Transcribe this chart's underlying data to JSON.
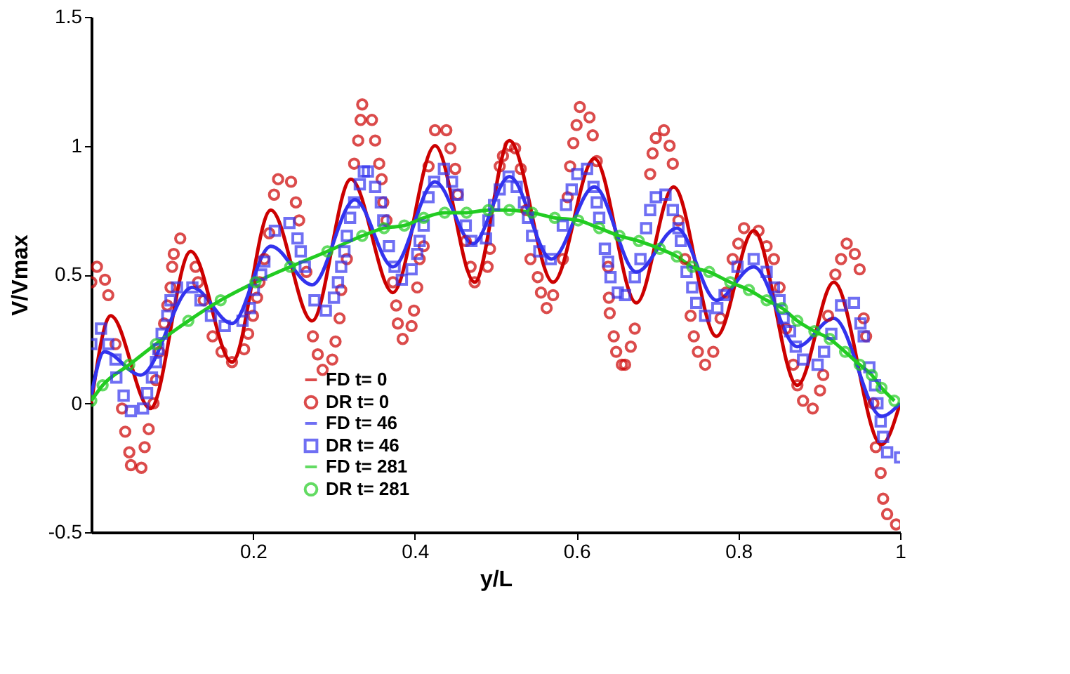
{
  "chart_data": {
    "type": "line",
    "xlabel": "y/L",
    "ylabel": "V/Vmax",
    "xlim": [
      0,
      1
    ],
    "ylim": [
      -0.5,
      1.5
    ],
    "xticks": [
      0.2,
      0.4,
      0.6,
      0.8,
      1
    ],
    "yticks": [
      -0.5,
      0,
      0.5,
      1,
      1.5
    ],
    "grid": false,
    "legend": "bottom",
    "series": [
      {
        "name": "FD t= 0",
        "type": "line",
        "marker": "none",
        "color": "#cc0000",
        "x": [
          0,
          0.024,
          0.073,
          0.123,
          0.174,
          0.222,
          0.273,
          0.321,
          0.373,
          0.425,
          0.474,
          0.517,
          0.571,
          0.622,
          0.674,
          0.72,
          0.773,
          0.819,
          0.873,
          0.918,
          0.977,
          1.0
        ],
        "values": [
          0.0,
          0.34,
          -0.02,
          0.59,
          0.16,
          0.75,
          0.32,
          0.87,
          0.43,
          1.0,
          0.47,
          1.02,
          0.47,
          0.95,
          0.39,
          0.84,
          0.26,
          0.67,
          0.07,
          0.47,
          -0.16,
          0.0
        ]
      },
      {
        "name": "DR t= 0",
        "type": "scatter",
        "marker": "circle",
        "color": "#cc0000",
        "x": [
          0.0,
          0.007,
          0.017,
          0.021,
          0.03,
          0.038,
          0.042,
          0.047,
          0.049,
          0.062,
          0.066,
          0.071,
          0.077,
          0.08,
          0.084,
          0.09,
          0.094,
          0.098,
          0.1,
          0.102,
          0.11,
          0.129,
          0.132,
          0.139,
          0.15,
          0.161,
          0.174,
          0.189,
          0.194,
          0.2,
          0.205,
          0.208,
          0.214,
          0.22,
          0.226,
          0.231,
          0.247,
          0.253,
          0.257,
          0.266,
          0.274,
          0.28,
          0.286,
          0.298,
          0.302,
          0.307,
          0.309,
          0.316,
          0.325,
          0.33,
          0.333,
          0.335,
          0.347,
          0.351,
          0.356,
          0.359,
          0.361,
          0.365,
          0.373,
          0.377,
          0.379,
          0.385,
          0.396,
          0.399,
          0.403,
          0.406,
          0.411,
          0.417,
          0.425,
          0.439,
          0.444,
          0.45,
          0.453,
          0.463,
          0.469,
          0.474,
          0.49,
          0.493,
          0.505,
          0.509,
          0.517,
          0.524,
          0.531,
          0.538,
          0.543,
          0.552,
          0.556,
          0.563,
          0.571,
          0.583,
          0.589,
          0.592,
          0.596,
          0.6,
          0.604,
          0.616,
          0.62,
          0.625,
          0.639,
          0.64,
          0.641,
          0.646,
          0.649,
          0.656,
          0.66,
          0.667,
          0.672,
          0.691,
          0.694,
          0.698,
          0.708,
          0.715,
          0.719,
          0.726,
          0.734,
          0.741,
          0.745,
          0.75,
          0.759,
          0.769,
          0.778,
          0.785,
          0.793,
          0.8,
          0.807,
          0.825,
          0.835,
          0.844,
          0.851,
          0.859,
          0.868,
          0.873,
          0.88,
          0.892,
          0.901,
          0.905,
          0.911,
          0.92,
          0.927,
          0.934,
          0.944,
          0.95,
          0.955,
          0.958,
          0.967,
          0.97,
          0.976,
          0.979,
          0.984,
          0.995
        ],
        "values": [
          0.47,
          0.53,
          0.48,
          0.42,
          0.23,
          -0.02,
          -0.11,
          -0.19,
          -0.24,
          -0.25,
          -0.17,
          -0.1,
          0.0,
          0.09,
          0.2,
          0.31,
          0.38,
          0.45,
          0.53,
          0.58,
          0.64,
          0.53,
          0.47,
          0.4,
          0.26,
          0.2,
          0.16,
          0.21,
          0.27,
          0.34,
          0.41,
          0.47,
          0.56,
          0.66,
          0.81,
          0.87,
          0.86,
          0.78,
          0.71,
          0.51,
          0.26,
          0.19,
          0.13,
          0.17,
          0.24,
          0.33,
          0.44,
          0.56,
          0.93,
          1.02,
          1.1,
          1.16,
          1.1,
          1.02,
          0.93,
          0.87,
          0.78,
          0.71,
          0.47,
          0.38,
          0.31,
          0.25,
          0.3,
          0.36,
          0.45,
          0.56,
          0.61,
          0.92,
          1.06,
          1.06,
          0.99,
          0.91,
          0.81,
          0.63,
          0.53,
          0.47,
          0.53,
          0.6,
          0.92,
          0.96,
          1.0,
          0.99,
          0.91,
          0.75,
          0.56,
          0.49,
          0.43,
          0.37,
          0.42,
          0.56,
          0.8,
          0.92,
          1.01,
          1.08,
          1.15,
          1.11,
          1.04,
          0.94,
          0.53,
          0.41,
          0.35,
          0.26,
          0.2,
          0.15,
          0.15,
          0.22,
          0.29,
          0.89,
          0.97,
          1.03,
          1.06,
          1.0,
          0.93,
          0.71,
          0.56,
          0.34,
          0.26,
          0.2,
          0.15,
          0.2,
          0.33,
          0.43,
          0.56,
          0.62,
          0.68,
          0.67,
          0.61,
          0.56,
          0.45,
          0.29,
          0.15,
          0.07,
          0.01,
          -0.02,
          0.05,
          0.11,
          0.34,
          0.5,
          0.56,
          0.62,
          0.58,
          0.52,
          0.33,
          0.26,
          0.0,
          -0.17,
          -0.27,
          -0.37,
          -0.43,
          -0.47
        ]
      },
      {
        "name": "FD t= 46",
        "type": "line",
        "marker": "none",
        "color": "#3333ee",
        "x": [
          0,
          0.016,
          0.061,
          0.125,
          0.174,
          0.222,
          0.273,
          0.326,
          0.373,
          0.425,
          0.472,
          0.517,
          0.569,
          0.622,
          0.674,
          0.724,
          0.773,
          0.819,
          0.873,
          0.918,
          0.977,
          1.0
        ],
        "values": [
          0.03,
          0.2,
          0.11,
          0.45,
          0.31,
          0.61,
          0.46,
          0.79,
          0.53,
          0.86,
          0.62,
          0.88,
          0.56,
          0.84,
          0.51,
          0.68,
          0.4,
          0.53,
          0.22,
          0.33,
          -0.05,
          0.0
        ]
      },
      {
        "name": "DR t= 46",
        "type": "scatter",
        "marker": "square",
        "color": "#3333ee",
        "x": [
          0.0,
          0.012,
          0.021,
          0.03,
          0.031,
          0.04,
          0.049,
          0.064,
          0.069,
          0.075,
          0.08,
          0.083,
          0.087,
          0.094,
          0.098,
          0.106,
          0.125,
          0.135,
          0.148,
          0.165,
          0.187,
          0.196,
          0.201,
          0.21,
          0.214,
          0.227,
          0.245,
          0.255,
          0.259,
          0.264,
          0.276,
          0.29,
          0.3,
          0.305,
          0.309,
          0.313,
          0.316,
          0.32,
          0.325,
          0.332,
          0.337,
          0.342,
          0.351,
          0.358,
          0.361,
          0.368,
          0.375,
          0.384,
          0.396,
          0.403,
          0.406,
          0.411,
          0.417,
          0.424,
          0.436,
          0.446,
          0.453,
          0.463,
          0.47,
          0.488,
          0.491,
          0.498,
          0.505,
          0.516,
          0.526,
          0.535,
          0.54,
          0.545,
          0.554,
          0.568,
          0.583,
          0.587,
          0.594,
          0.601,
          0.613,
          0.621,
          0.625,
          0.628,
          0.635,
          0.639,
          0.642,
          0.651,
          0.66,
          0.672,
          0.679,
          0.686,
          0.691,
          0.698,
          0.71,
          0.719,
          0.726,
          0.729,
          0.736,
          0.743,
          0.748,
          0.759,
          0.774,
          0.783,
          0.799,
          0.819,
          0.835,
          0.844,
          0.851,
          0.856,
          0.864,
          0.871,
          0.88,
          0.898,
          0.906,
          0.915,
          0.927,
          0.943,
          0.951,
          0.955,
          0.962,
          0.969,
          0.972,
          0.976,
          0.979,
          0.984,
          1.0
        ],
        "values": [
          0.23,
          0.29,
          0.23,
          0.17,
          0.1,
          0.03,
          -0.03,
          -0.02,
          0.04,
          0.1,
          0.16,
          0.21,
          0.27,
          0.34,
          0.4,
          0.45,
          0.45,
          0.4,
          0.34,
          0.3,
          0.32,
          0.37,
          0.44,
          0.5,
          0.55,
          0.67,
          0.7,
          0.64,
          0.59,
          0.53,
          0.4,
          0.36,
          0.41,
          0.47,
          0.53,
          0.59,
          0.65,
          0.72,
          0.78,
          0.85,
          0.9,
          0.9,
          0.84,
          0.78,
          0.71,
          0.61,
          0.53,
          0.48,
          0.52,
          0.58,
          0.63,
          0.69,
          0.8,
          0.86,
          0.91,
          0.86,
          0.81,
          0.69,
          0.63,
          0.64,
          0.71,
          0.77,
          0.83,
          0.88,
          0.84,
          0.78,
          0.72,
          0.65,
          0.59,
          0.56,
          0.69,
          0.77,
          0.83,
          0.89,
          0.91,
          0.84,
          0.78,
          0.72,
          0.6,
          0.55,
          0.49,
          0.43,
          0.42,
          0.49,
          0.56,
          0.68,
          0.75,
          0.8,
          0.81,
          0.75,
          0.68,
          0.63,
          0.51,
          0.45,
          0.39,
          0.34,
          0.37,
          0.42,
          0.53,
          0.56,
          0.51,
          0.45,
          0.4,
          0.33,
          0.28,
          0.22,
          0.17,
          0.15,
          0.2,
          0.27,
          0.38,
          0.39,
          0.31,
          0.26,
          0.14,
          0.07,
          0.0,
          -0.07,
          -0.13,
          -0.19,
          -0.21
        ]
      },
      {
        "name": "FD t= 281",
        "type": "line",
        "marker": "none",
        "color": "#22cc22",
        "x": [
          0,
          0.014,
          0.047,
          0.08,
          0.12,
          0.16,
          0.203,
          0.246,
          0.292,
          0.335,
          0.362,
          0.387,
          0.411,
          0.437,
          0.464,
          0.491,
          0.517,
          0.545,
          0.573,
          0.602,
          0.628,
          0.653,
          0.677,
          0.703,
          0.724,
          0.743,
          0.764,
          0.79,
          0.813,
          0.835,
          0.854,
          0.873,
          0.894,
          0.913,
          0.932,
          0.95,
          0.965,
          0.977,
          0.993
        ],
        "values": [
          0.01,
          0.07,
          0.15,
          0.23,
          0.32,
          0.4,
          0.47,
          0.53,
          0.59,
          0.65,
          0.68,
          0.69,
          0.72,
          0.74,
          0.74,
          0.75,
          0.75,
          0.74,
          0.72,
          0.71,
          0.68,
          0.65,
          0.63,
          0.6,
          0.57,
          0.53,
          0.51,
          0.47,
          0.44,
          0.4,
          0.37,
          0.32,
          0.28,
          0.25,
          0.2,
          0.15,
          0.11,
          0.06,
          0.01
        ]
      },
      {
        "name": "DR t= 281",
        "type": "scatter",
        "marker": "circle",
        "color": "#22cc22",
        "x": [
          0,
          0.014,
          0.047,
          0.08,
          0.12,
          0.16,
          0.203,
          0.246,
          0.292,
          0.335,
          0.362,
          0.387,
          0.411,
          0.437,
          0.464,
          0.491,
          0.517,
          0.545,
          0.573,
          0.602,
          0.628,
          0.653,
          0.677,
          0.703,
          0.724,
          0.743,
          0.764,
          0.79,
          0.813,
          0.835,
          0.854,
          0.873,
          0.894,
          0.913,
          0.932,
          0.95,
          0.965,
          0.977,
          0.993
        ],
        "values": [
          0.01,
          0.07,
          0.15,
          0.23,
          0.32,
          0.4,
          0.47,
          0.53,
          0.59,
          0.65,
          0.68,
          0.69,
          0.72,
          0.74,
          0.74,
          0.75,
          0.75,
          0.74,
          0.72,
          0.71,
          0.68,
          0.65,
          0.63,
          0.6,
          0.57,
          0.53,
          0.51,
          0.47,
          0.44,
          0.4,
          0.37,
          0.32,
          0.28,
          0.25,
          0.2,
          0.15,
          0.11,
          0.06,
          0.01
        ]
      }
    ]
  }
}
